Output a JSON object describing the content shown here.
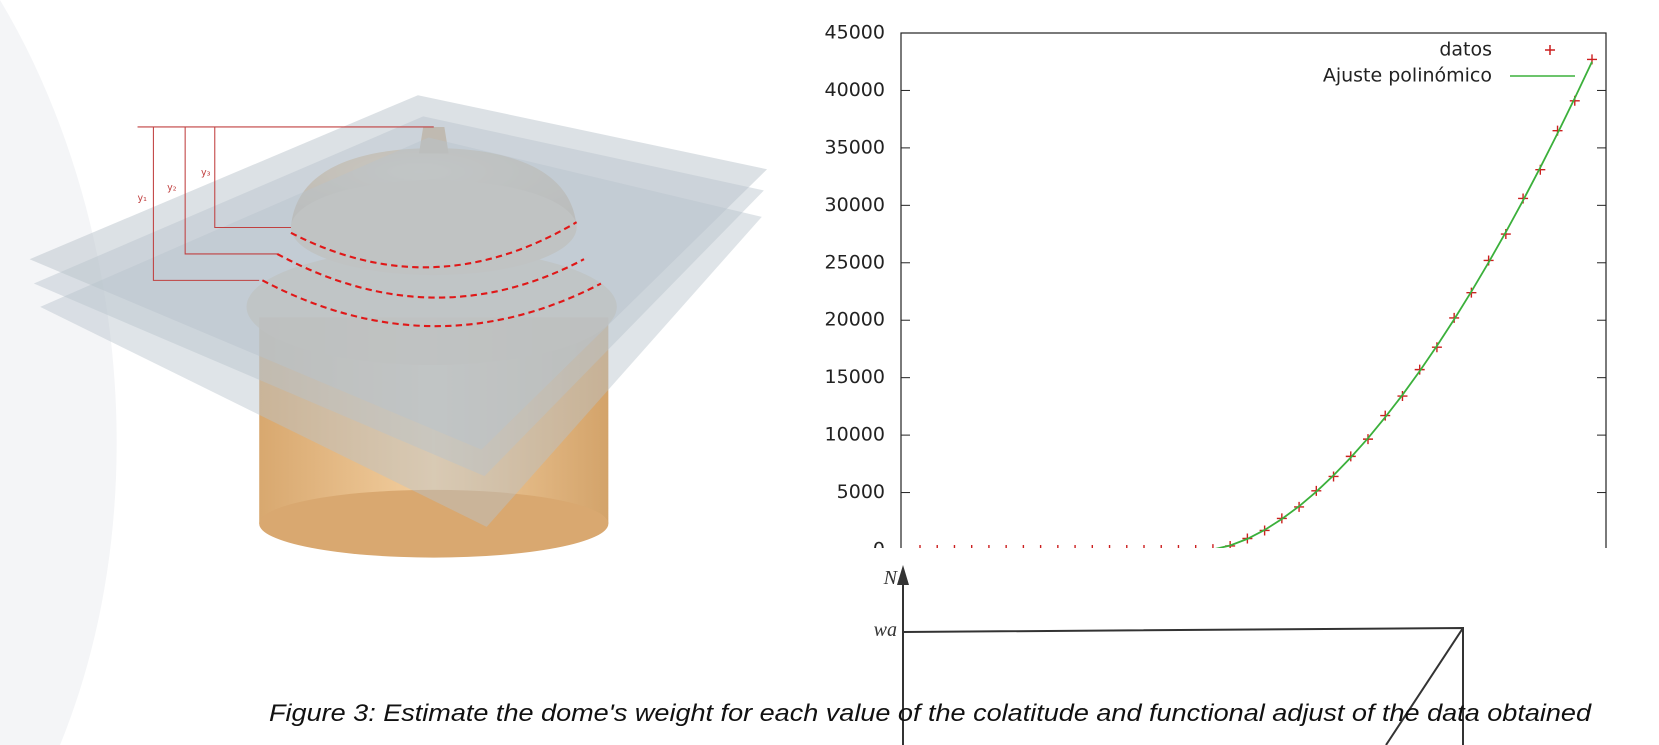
{
  "illustration": {
    "labels": [
      "y₁",
      "y₂",
      "y₃"
    ]
  },
  "chart_data": {
    "type": "line",
    "categories": [
      null,
      null,
      null,
      null,
      null,
      null,
      null,
      null,
      null,
      null,
      null,
      null,
      null,
      null,
      null,
      null,
      null,
      null,
      null,
      null,
      null,
      null,
      null,
      null,
      null,
      null,
      null,
      null,
      null,
      null,
      null,
      null,
      null,
      null,
      null,
      null,
      null,
      null,
      null,
      null
    ],
    "series": [
      {
        "name": "datos",
        "color": "#cc1f1f",
        "marker": "+",
        "values": [
          0,
          0,
          0,
          0,
          0,
          0,
          0,
          0,
          0,
          0,
          0,
          0,
          0,
          0,
          0,
          0,
          0,
          80,
          350,
          1000,
          1700,
          2750,
          3750,
          5150,
          6400,
          8150,
          9650,
          11700,
          13400,
          15700,
          17650,
          20200,
          22400,
          25200,
          27500,
          30600,
          33100,
          36500,
          39100,
          42700
        ]
      },
      {
        "name": "Ajuste polinómico",
        "color": "#3bb03b",
        "values": [
          0,
          0,
          0,
          0,
          0,
          0,
          0,
          0,
          0,
          0,
          0,
          0,
          0,
          0,
          0,
          0,
          0,
          50,
          391,
          968,
          1743,
          2696,
          3808,
          5075,
          6494,
          8050,
          9733,
          11560,
          13498,
          15572,
          17765,
          20077,
          22495,
          25033,
          27676,
          30430,
          33299,
          36261,
          39334,
          42500
        ]
      }
    ],
    "ylim": [
      0,
      45000
    ],
    "yticks": [
      0,
      5000,
      10000,
      15000,
      20000,
      25000,
      30000,
      35000,
      40000,
      45000
    ],
    "legend": "upper right"
  },
  "diagram": {
    "axis_label": "N",
    "level_label": "wa"
  },
  "caption": "Figure 3: Estimate the dome's weight for each value of the colatitude and functional adjust of the data obtained"
}
